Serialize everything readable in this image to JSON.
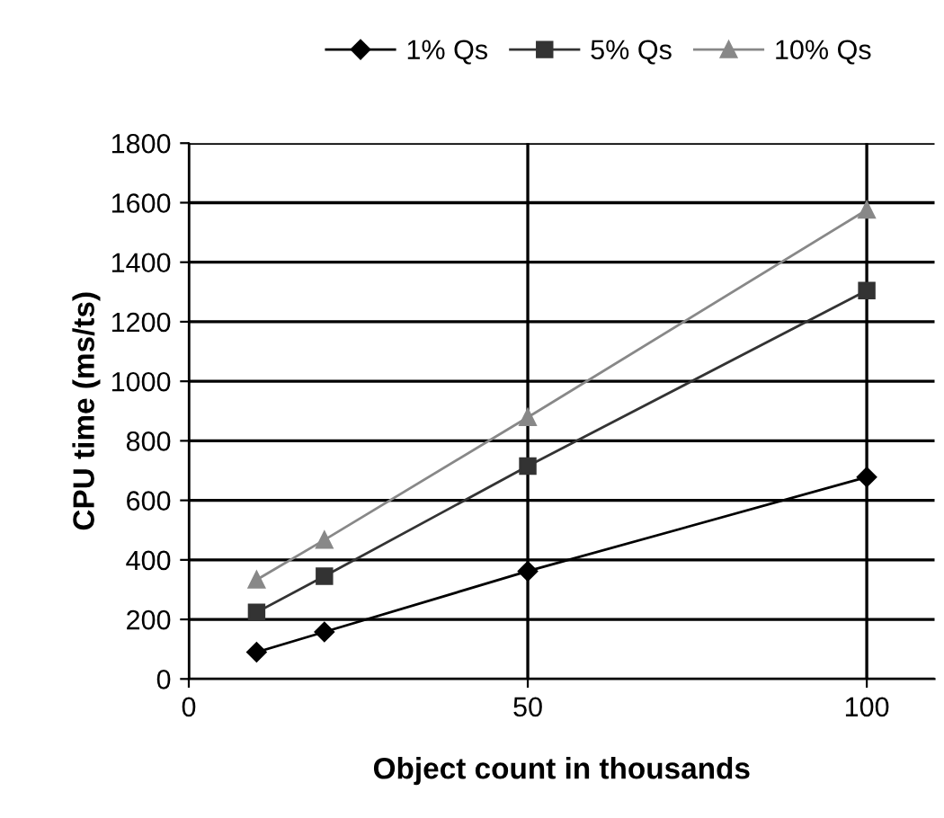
{
  "chart_data": {
    "type": "line",
    "xlabel": "Object count in thousands",
    "ylabel": "CPU time (ms/ts)",
    "x": [
      10,
      20,
      50,
      100
    ],
    "series": [
      {
        "name": "1% Qs",
        "color": "#000000",
        "marker": "diamond",
        "values": [
          90,
          158,
          362,
          678
        ]
      },
      {
        "name": "5% Qs",
        "color": "#333333",
        "marker": "square",
        "values": [
          224,
          345,
          715,
          1305
        ]
      },
      {
        "name": "10% Qs",
        "color": "#888888",
        "marker": "triangle",
        "values": [
          333,
          467,
          879,
          1576
        ]
      }
    ],
    "xlim": [
      0,
      110
    ],
    "xticks": [
      0,
      50,
      100
    ],
    "ylim": [
      0,
      1800
    ],
    "yticks": [
      0,
      200,
      400,
      600,
      800,
      1000,
      1200,
      1400,
      1600,
      1800
    ],
    "grid": true,
    "legend": "top",
    "line_style": "solid"
  }
}
